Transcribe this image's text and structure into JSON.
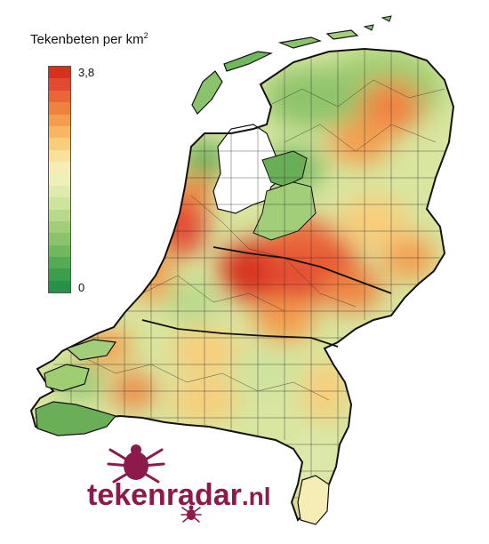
{
  "legend": {
    "title_main": "Tekenbeten per km",
    "title_sup": "2",
    "max_label": "3,8",
    "min_label": "0",
    "colors": [
      "#d7301f",
      "#e34a33",
      "#ea6538",
      "#f0823f",
      "#f49d4e",
      "#f7b663",
      "#f8cd7c",
      "#f9e199",
      "#f6ecb5",
      "#eef0b8",
      "#dfeab0",
      "#cde39e",
      "#b8d98b",
      "#a2ce7a",
      "#8ac36b",
      "#70b85e",
      "#55ab54",
      "#3c9e4c",
      "#259248"
    ]
  },
  "map": {
    "land_color": "#c9dd8f",
    "water_color": "#ffffff",
    "border_color": "#111111",
    "hotspot_colors": {
      "high": "#e34a33",
      "mid": "#f0823f",
      "low": "#f8cd7c",
      "green": "#6db85d"
    }
  },
  "logo": {
    "text": "tekenradar",
    "suffix": ".nl",
    "color": "#8c1a4a"
  }
}
